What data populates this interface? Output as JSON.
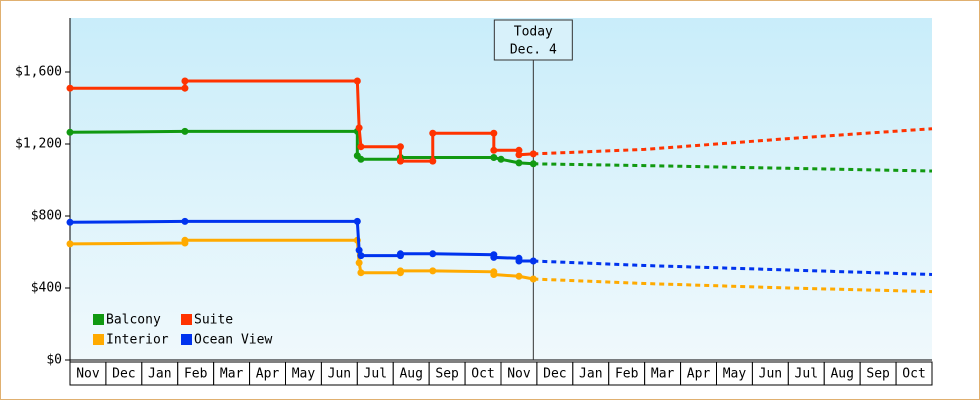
{
  "chart_data": {
    "type": "line",
    "categories": [
      "Nov",
      "Dec",
      "Jan",
      "Feb",
      "Mar",
      "Apr",
      "May",
      "Jun",
      "Jul",
      "Aug",
      "Sep",
      "Oct",
      "Nov",
      "Dec",
      "Jan",
      "Feb",
      "Mar",
      "Apr",
      "May",
      "Jun",
      "Jul",
      "Aug",
      "Sep",
      "Oct"
    ],
    "xlim": [
      0,
      24
    ],
    "ylim": [
      0,
      1900
    ],
    "yticks": [
      {
        "value": 0,
        "label": "$0"
      },
      {
        "value": 400,
        "label": "$400"
      },
      {
        "value": 800,
        "label": "$800"
      },
      {
        "value": 1200,
        "label": "$1,200"
      },
      {
        "value": 1600,
        "label": "$1,600"
      }
    ],
    "today": {
      "x": 12.9,
      "label": [
        "Today",
        "Dec. 4"
      ]
    },
    "legend": "lower left",
    "series": [
      {
        "name": "Balcony",
        "color": "#119911",
        "x": [
          0,
          3.2,
          8.0,
          8.0,
          8.1,
          9.2,
          9.2,
          11.8,
          12.0,
          12.5,
          12.9
        ],
        "values": [
          1265,
          1270,
          1270,
          1135,
          1115,
          1115,
          1125,
          1125,
          1115,
          1095,
          1090
        ],
        "forecast": {
          "x": [
            12.9,
            16,
            20,
            24
          ],
          "values": [
            1090,
            1080,
            1065,
            1050
          ]
        }
      },
      {
        "name": "Suite",
        "color": "#ff3300",
        "x": [
          0,
          3.2,
          3.2,
          8.0,
          8.05,
          8.1,
          9.2,
          9.2,
          10.1,
          10.1,
          11.8,
          11.8,
          12.5,
          12.5,
          12.9
        ],
        "values": [
          1510,
          1510,
          1550,
          1550,
          1290,
          1185,
          1185,
          1105,
          1105,
          1260,
          1260,
          1165,
          1165,
          1140,
          1145
        ],
        "forecast": {
          "x": [
            12.9,
            16,
            20,
            24
          ],
          "values": [
            1145,
            1170,
            1230,
            1285
          ]
        }
      },
      {
        "name": "Interior",
        "color": "#ffaa00",
        "x": [
          0,
          3.2,
          3.2,
          8.0,
          8.05,
          8.1,
          9.2,
          9.2,
          10.1,
          11.8,
          11.8,
          12.5,
          12.9
        ],
        "values": [
          645,
          650,
          665,
          665,
          540,
          485,
          485,
          495,
          495,
          490,
          475,
          465,
          450
        ],
        "forecast": {
          "x": [
            12.9,
            16,
            20,
            24
          ],
          "values": [
            450,
            425,
            400,
            380
          ]
        }
      },
      {
        "name": "Ocean View",
        "color": "#0033ee",
        "x": [
          0,
          3.2,
          8.0,
          8.05,
          8.1,
          9.2,
          9.2,
          10.1,
          11.8,
          11.8,
          12.5,
          12.5,
          12.9
        ],
        "values": [
          765,
          770,
          770,
          610,
          580,
          580,
          590,
          590,
          585,
          570,
          565,
          550,
          550
        ],
        "forecast": {
          "x": [
            12.9,
            16,
            20,
            24
          ],
          "values": [
            550,
            525,
            500,
            475
          ]
        }
      }
    ]
  }
}
